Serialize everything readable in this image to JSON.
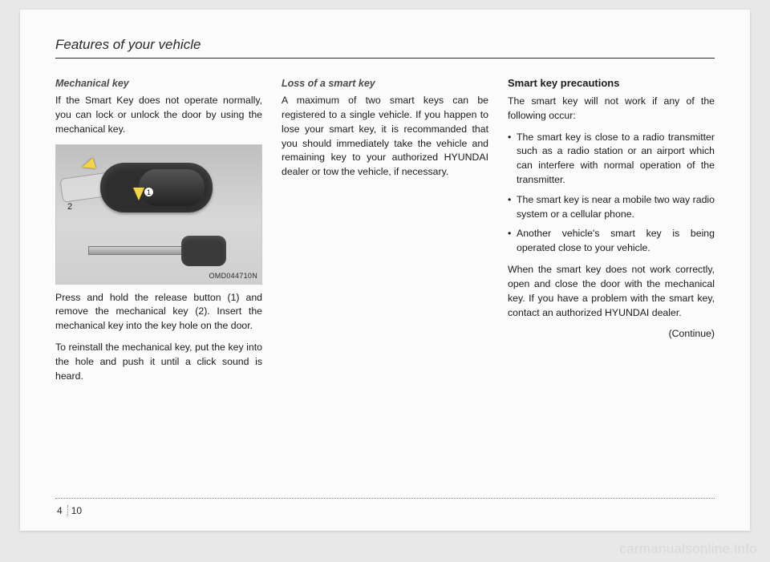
{
  "chapterTitle": "Features of your vehicle",
  "figure": {
    "code": "OMD044710N",
    "callout1": "1",
    "label2": "2"
  },
  "col1": {
    "heading": "Mechanical key",
    "p1": "If the Smart Key does not operate normally, you can lock or unlock the door by using the mechanical key.",
    "p2": "Press and hold the release button (1) and remove the mechanical key (2). Insert the mechanical key into the key hole on the door.",
    "p3": "To reinstall the mechanical key, put the key into the hole and push it until a click sound is heard."
  },
  "col2": {
    "heading": "Loss of a smart key",
    "p1": "A maximum of two smart keys can be registered to a single vehicle. If you happen to lose your smart key, it is recommanded that you should immediately take the vehicle and remaining key to your authorized HYUNDAI dealer or tow the vehicle, if necessary."
  },
  "col3": {
    "heading": "Smart key precautions",
    "p1": "The smart key will not work if any of the following occur:",
    "li1": "The smart key is close to a radio transmitter such as a radio station or an airport which can interfere with normal operation of the transmitter.",
    "li2": "The smart key is near a mobile two way radio system or a cellular phone.",
    "li3": "Another vehicle's smart key is being operated close to your vehicle.",
    "p2": "When the smart key does not work correctly, open and close the door with the mechanical key. If you have a problem with the smart key, contact an authorized HYUNDAI dealer.",
    "continue": "(Continue)"
  },
  "footer": {
    "chapter": "4",
    "page": "10"
  },
  "watermark": "carmanualsonline.info"
}
